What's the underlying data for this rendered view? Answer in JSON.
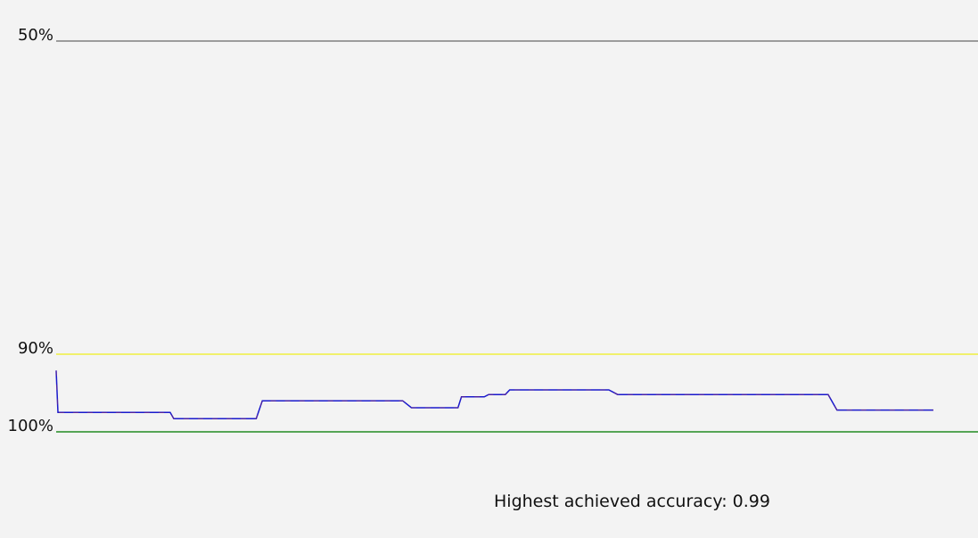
{
  "chart_data": {
    "type": "line",
    "title": "",
    "xlabel": "",
    "ylabel": "",
    "x_range": [
      0,
      1000
    ],
    "y_axis": {
      "orientation": "inverted",
      "anchors": [
        {
          "value": 0.5,
          "label": "50%"
        },
        {
          "value": 0.9,
          "label": "90%"
        },
        {
          "value": 1.0,
          "label": "100%"
        }
      ]
    },
    "reference_lines": [
      {
        "value": 0.5,
        "label": "50%",
        "color": "#808080"
      },
      {
        "value": 0.9,
        "label": "90%",
        "color": "#f0f040"
      },
      {
        "value": 1.0,
        "label": "100%",
        "color": "#228b22"
      }
    ],
    "series": [
      {
        "color": "#1a1acc",
        "style": "step",
        "points": [
          [
            0,
            0.921
          ],
          [
            2,
            0.975
          ],
          [
            130,
            0.975
          ],
          [
            134,
            0.983
          ],
          [
            228,
            0.983
          ],
          [
            235,
            0.96
          ],
          [
            395,
            0.96
          ],
          [
            405,
            0.969
          ],
          [
            458,
            0.969
          ],
          [
            462,
            0.955
          ],
          [
            488,
            0.955
          ],
          [
            493,
            0.952
          ],
          [
            512,
            0.952
          ],
          [
            517,
            0.946
          ],
          [
            630,
            0.946
          ],
          [
            640,
            0.952
          ],
          [
            880,
            0.952
          ],
          [
            890,
            0.972
          ],
          [
            1000,
            0.972
          ]
        ]
      }
    ],
    "grid": false,
    "legend": "none"
  },
  "summary": {
    "label": "Highest achieved accuracy: 0.99"
  }
}
